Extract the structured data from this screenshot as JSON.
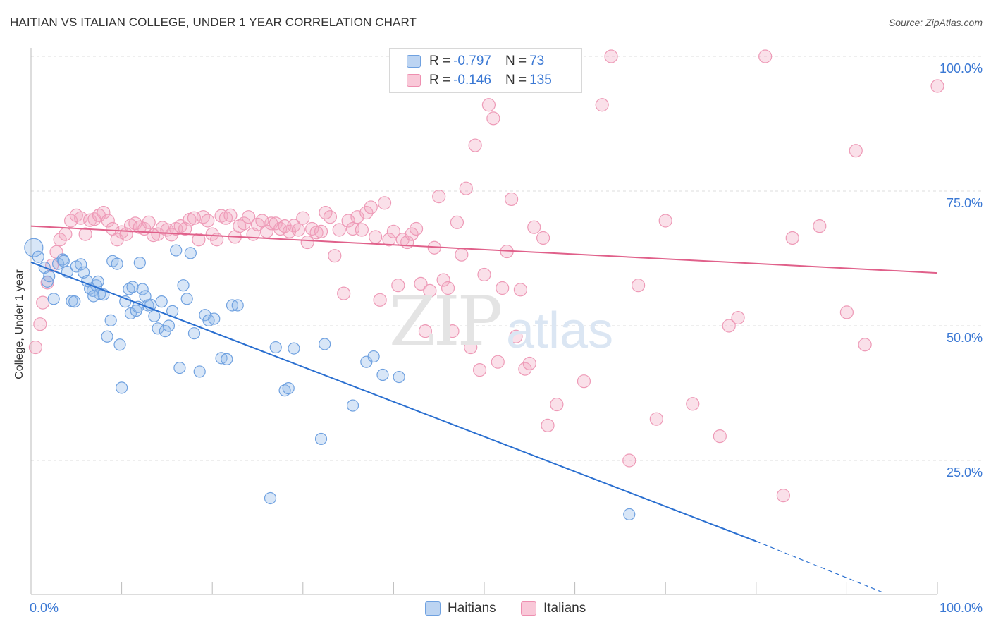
{
  "title": "HAITIAN VS ITALIAN COLLEGE, UNDER 1 YEAR CORRELATION CHART",
  "source": "Source: ZipAtlas.com",
  "watermark": {
    "zip": "ZIP",
    "atlas": "atlas"
  },
  "legend": {
    "haitians": {
      "r_label": "R = ",
      "r_value": "-0.797",
      "n_label": "N = ",
      "n_value": "73"
    },
    "italians": {
      "r_label": "R = ",
      "r_value": "-0.146",
      "n_label": "N = ",
      "n_value": "135"
    }
  },
  "bottom_legend": {
    "haitians": "Haitians",
    "italians": "Italians"
  },
  "colors": {
    "haitians": "#8fb8e8",
    "haitians_line": "#2a6fd0",
    "italians": "#f2a5bf",
    "italians_line": "#e0608a",
    "tick": "#3a78d4"
  },
  "chart_data": {
    "type": "scatter",
    "title": "HAITIAN VS ITALIAN COLLEGE, UNDER 1 YEAR CORRELATION CHART",
    "xlabel": "",
    "ylabel": "College, Under 1 year",
    "xlim": [
      0,
      100
    ],
    "ylim": [
      0,
      100
    ],
    "x_tick_labels": [
      "0.0%",
      "100.0%"
    ],
    "y_tick_labels": [
      "100.0%",
      "75.0%",
      "50.0%",
      "25.0%"
    ],
    "y_ticks": [
      100,
      75,
      50,
      25
    ],
    "grid": true,
    "legend_position": "top-center",
    "series": [
      {
        "name": "Haitians",
        "r": -0.797,
        "n": 73,
        "trend": {
          "x0": 0,
          "y0": 61.8,
          "x1": 80,
          "y1": 10.0,
          "dashed_to_x": 94,
          "dashed_to_y": 0.5
        },
        "points": [
          [
            0.3,
            64.5
          ],
          [
            0.8,
            62.8
          ],
          [
            1.5,
            60.8
          ],
          [
            1.8,
            58.2
          ],
          [
            2.0,
            59.2
          ],
          [
            2.5,
            55.0
          ],
          [
            3.0,
            61.5
          ],
          [
            3.5,
            62.3
          ],
          [
            4.0,
            60.0
          ],
          [
            4.5,
            54.6
          ],
          [
            4.8,
            54.5
          ],
          [
            5.0,
            61.0
          ],
          [
            5.5,
            61.4
          ],
          [
            5.8,
            59.9
          ],
          [
            6.2,
            58.3
          ],
          [
            6.5,
            56.9
          ],
          [
            6.8,
            56.5
          ],
          [
            7.2,
            57.5
          ],
          [
            7.4,
            58.2
          ],
          [
            7.6,
            55.9
          ],
          [
            8.0,
            55.8
          ],
          [
            8.4,
            48.0
          ],
          [
            8.8,
            51.0
          ],
          [
            9.0,
            62.0
          ],
          [
            9.5,
            61.5
          ],
          [
            9.8,
            46.5
          ],
          [
            10.0,
            38.5
          ],
          [
            10.4,
            54.5
          ],
          [
            10.8,
            56.8
          ],
          [
            11.0,
            52.3
          ],
          [
            11.2,
            57.2
          ],
          [
            11.6,
            52.8
          ],
          [
            12.0,
            61.7
          ],
          [
            12.3,
            56.8
          ],
          [
            12.6,
            55.5
          ],
          [
            12.9,
            53.8
          ],
          [
            13.2,
            53.9
          ],
          [
            13.6,
            51.8
          ],
          [
            14.0,
            49.5
          ],
          [
            14.4,
            54.5
          ],
          [
            14.8,
            49.0
          ],
          [
            15.2,
            50.0
          ],
          [
            15.6,
            52.7
          ],
          [
            16.0,
            64.0
          ],
          [
            16.4,
            42.2
          ],
          [
            16.8,
            57.5
          ],
          [
            17.2,
            55.0
          ],
          [
            17.6,
            63.5
          ],
          [
            18.0,
            48.6
          ],
          [
            18.6,
            41.5
          ],
          [
            19.2,
            52.0
          ],
          [
            19.6,
            51.0
          ],
          [
            20.2,
            51.3
          ],
          [
            21.0,
            44.0
          ],
          [
            21.6,
            43.8
          ],
          [
            22.2,
            53.8
          ],
          [
            22.8,
            53.8
          ],
          [
            26.4,
            18.0
          ],
          [
            27.0,
            46.0
          ],
          [
            28.0,
            38.0
          ],
          [
            28.4,
            38.4
          ],
          [
            29.0,
            45.8
          ],
          [
            32.0,
            29.0
          ],
          [
            32.4,
            46.6
          ],
          [
            35.5,
            35.2
          ],
          [
            37.0,
            43.3
          ],
          [
            37.8,
            44.3
          ],
          [
            38.8,
            40.9
          ],
          [
            40.6,
            40.5
          ],
          [
            66.0,
            15.0
          ],
          [
            3.6,
            62.0
          ],
          [
            6.9,
            55.5
          ],
          [
            11.8,
            53.5
          ]
        ]
      },
      {
        "name": "Italians",
        "r": -0.146,
        "n": 135,
        "trend": {
          "x0": 0,
          "y0": 68.5,
          "x1": 100,
          "y1": 59.8
        },
        "points": [
          [
            0.5,
            46.0
          ],
          [
            1.0,
            50.3
          ],
          [
            1.3,
            54.3
          ],
          [
            1.8,
            58.0
          ],
          [
            2.3,
            61.2
          ],
          [
            2.8,
            63.7
          ],
          [
            3.2,
            66.0
          ],
          [
            3.8,
            67.0
          ],
          [
            4.4,
            69.5
          ],
          [
            5.0,
            70.5
          ],
          [
            5.5,
            70.0
          ],
          [
            6.0,
            67.0
          ],
          [
            6.5,
            69.6
          ],
          [
            7.0,
            69.8
          ],
          [
            7.5,
            70.5
          ],
          [
            8.0,
            71.0
          ],
          [
            8.5,
            69.5
          ],
          [
            9.0,
            68.0
          ],
          [
            9.5,
            66.0
          ],
          [
            10.0,
            67.4
          ],
          [
            10.5,
            67.0
          ],
          [
            11.0,
            68.6
          ],
          [
            11.5,
            69.0
          ],
          [
            12.0,
            68.3
          ],
          [
            12.5,
            68.0
          ],
          [
            13.0,
            69.2
          ],
          [
            13.5,
            66.8
          ],
          [
            14.0,
            67.0
          ],
          [
            14.5,
            68.2
          ],
          [
            15.0,
            67.8
          ],
          [
            15.5,
            66.9
          ],
          [
            16.0,
            68.0
          ],
          [
            16.5,
            68.5
          ],
          [
            17.0,
            68.0
          ],
          [
            17.5,
            69.7
          ],
          [
            18.0,
            70.0
          ],
          [
            18.5,
            66.0
          ],
          [
            19.0,
            70.2
          ],
          [
            19.5,
            69.5
          ],
          [
            20.0,
            67.0
          ],
          [
            20.5,
            66.0
          ],
          [
            21.0,
            70.4
          ],
          [
            21.5,
            70.0
          ],
          [
            22.0,
            70.5
          ],
          [
            22.5,
            66.5
          ],
          [
            23.0,
            68.5
          ],
          [
            23.5,
            69.0
          ],
          [
            24.0,
            70.2
          ],
          [
            24.5,
            67.0
          ],
          [
            25.0,
            68.8
          ],
          [
            25.5,
            69.5
          ],
          [
            26.0,
            67.5
          ],
          [
            26.5,
            69.0
          ],
          [
            27.0,
            69.0
          ],
          [
            27.5,
            68.0
          ],
          [
            28.0,
            68.5
          ],
          [
            28.5,
            67.5
          ],
          [
            29.0,
            68.6
          ],
          [
            29.5,
            67.8
          ],
          [
            30.0,
            70.0
          ],
          [
            30.5,
            65.5
          ],
          [
            31.0,
            68.0
          ],
          [
            31.5,
            67.3
          ],
          [
            32.0,
            67.5
          ],
          [
            32.5,
            71.0
          ],
          [
            33.0,
            70.2
          ],
          [
            33.5,
            63.0
          ],
          [
            34.0,
            67.8
          ],
          [
            34.5,
            56.0
          ],
          [
            35.0,
            69.5
          ],
          [
            35.5,
            68.0
          ],
          [
            36.0,
            70.2
          ],
          [
            36.5,
            67.8
          ],
          [
            37.0,
            71.0
          ],
          [
            37.5,
            72.0
          ],
          [
            38.0,
            66.5
          ],
          [
            38.5,
            54.8
          ],
          [
            39.0,
            72.8
          ],
          [
            39.5,
            66.0
          ],
          [
            40.0,
            67.5
          ],
          [
            40.5,
            57.5
          ],
          [
            41.0,
            66.0
          ],
          [
            41.5,
            65.5
          ],
          [
            42.0,
            67.0
          ],
          [
            42.5,
            68.0
          ],
          [
            43.0,
            57.8
          ],
          [
            43.5,
            49.0
          ],
          [
            44.0,
            56.5
          ],
          [
            44.5,
            64.5
          ],
          [
            45.0,
            74.0
          ],
          [
            45.5,
            58.5
          ],
          [
            46.0,
            57.0
          ],
          [
            46.5,
            49.0
          ],
          [
            47.0,
            69.2
          ],
          [
            47.5,
            63.2
          ],
          [
            48.0,
            75.5
          ],
          [
            48.5,
            46.0
          ],
          [
            49.0,
            83.5
          ],
          [
            49.5,
            41.8
          ],
          [
            50.0,
            59.5
          ],
          [
            50.5,
            91.0
          ],
          [
            51.0,
            88.5
          ],
          [
            51.5,
            43.3
          ],
          [
            52.0,
            57.0
          ],
          [
            52.5,
            63.8
          ],
          [
            53.0,
            73.5
          ],
          [
            53.5,
            48.0
          ],
          [
            54.0,
            56.7
          ],
          [
            54.5,
            42.0
          ],
          [
            55.0,
            43.0
          ],
          [
            55.5,
            68.3
          ],
          [
            56.0,
            100.0
          ],
          [
            56.5,
            66.3
          ],
          [
            57.0,
            31.5
          ],
          [
            58.0,
            35.4
          ],
          [
            60.0,
            100.0
          ],
          [
            61.0,
            39.7
          ],
          [
            63.0,
            91.0
          ],
          [
            64.0,
            100.0
          ],
          [
            66.0,
            25.0
          ],
          [
            67.0,
            57.5
          ],
          [
            69.0,
            32.7
          ],
          [
            70.0,
            69.5
          ],
          [
            73.0,
            35.5
          ],
          [
            76.0,
            29.5
          ],
          [
            77.0,
            50.0
          ],
          [
            78.0,
            51.5
          ],
          [
            81.0,
            100.0
          ],
          [
            83.0,
            18.5
          ],
          [
            84.0,
            66.3
          ],
          [
            87.0,
            68.5
          ],
          [
            90.0,
            52.5
          ],
          [
            91.0,
            82.5
          ],
          [
            92.0,
            46.5
          ],
          [
            100.0,
            94.5
          ]
        ]
      }
    ]
  }
}
